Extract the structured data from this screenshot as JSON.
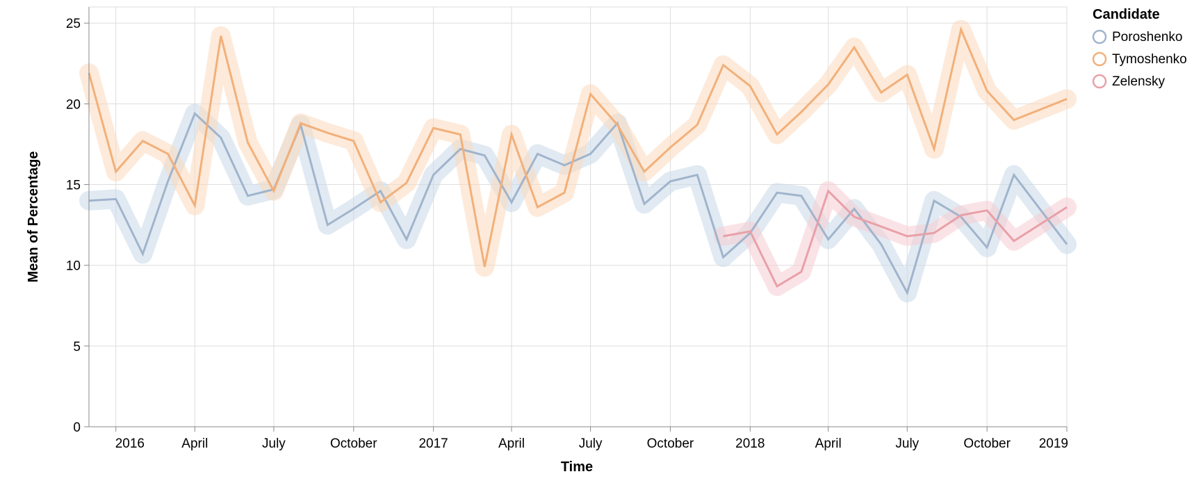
{
  "chart_data": {
    "type": "line",
    "xlabel": "Time",
    "ylabel": "Mean of Percentage",
    "ylim": [
      0,
      26
    ],
    "yticks": [
      0,
      5,
      10,
      15,
      20,
      25
    ],
    "xlim": [
      "2015-12-01",
      "2019-01-01"
    ],
    "xticks": [
      {
        "date": "2016-01-01",
        "label": "2016"
      },
      {
        "date": "2016-04-01",
        "label": "April"
      },
      {
        "date": "2016-07-01",
        "label": "July"
      },
      {
        "date": "2016-10-01",
        "label": "October"
      },
      {
        "date": "2017-01-01",
        "label": "2017"
      },
      {
        "date": "2017-04-01",
        "label": "April"
      },
      {
        "date": "2017-07-01",
        "label": "July"
      },
      {
        "date": "2017-10-01",
        "label": "October"
      },
      {
        "date": "2018-01-01",
        "label": "2018"
      },
      {
        "date": "2018-04-01",
        "label": "April"
      },
      {
        "date": "2018-07-01",
        "label": "July"
      },
      {
        "date": "2018-10-01",
        "label": "October"
      },
      {
        "date": "2019-01-01",
        "label": "2019"
      }
    ],
    "grid": true,
    "legend": {
      "title": "Candidate",
      "position": "top-right"
    },
    "series": [
      {
        "name": "Poroshenko",
        "color": "#a0b4cc",
        "halo": "#c9d8e8",
        "points": [
          [
            "2015-12-01",
            14.0
          ],
          [
            "2016-01-01",
            14.1
          ],
          [
            "2016-02-01",
            10.7
          ],
          [
            "2016-03-01",
            15.2
          ],
          [
            "2016-04-01",
            19.4
          ],
          [
            "2016-05-01",
            17.9
          ],
          [
            "2016-06-01",
            14.3
          ],
          [
            "2016-07-01",
            14.7
          ],
          [
            "2016-08-01",
            18.7
          ],
          [
            "2016-09-01",
            12.5
          ],
          [
            "2016-10-01",
            13.5
          ],
          [
            "2016-11-01",
            14.6
          ],
          [
            "2016-12-01",
            11.6
          ],
          [
            "2017-01-01",
            15.6
          ],
          [
            "2017-02-01",
            17.2
          ],
          [
            "2017-03-01",
            16.8
          ],
          [
            "2017-04-01",
            13.9
          ],
          [
            "2017-05-01",
            16.9
          ],
          [
            "2017-06-01",
            16.2
          ],
          [
            "2017-07-01",
            16.9
          ],
          [
            "2017-08-01",
            18.8
          ],
          [
            "2017-09-01",
            13.8
          ],
          [
            "2017-10-01",
            15.2
          ],
          [
            "2017-11-01",
            15.6
          ],
          [
            "2017-12-01",
            10.5
          ],
          [
            "2018-01-01",
            12.0
          ],
          [
            "2018-02-01",
            14.5
          ],
          [
            "2018-03-01",
            14.3
          ],
          [
            "2018-04-01",
            11.6
          ],
          [
            "2018-05-01",
            13.5
          ],
          [
            "2018-06-01",
            11.3
          ],
          [
            "2018-07-01",
            8.3
          ],
          [
            "2018-08-01",
            14.0
          ],
          [
            "2018-09-01",
            13.0
          ],
          [
            "2018-10-01",
            11.1
          ],
          [
            "2018-11-01",
            15.6
          ],
          [
            "2019-01-01",
            11.3
          ]
        ]
      },
      {
        "name": "Tymoshenko",
        "color": "#f2b07a",
        "halo": "#fcd9bc",
        "points": [
          [
            "2015-12-01",
            21.9
          ],
          [
            "2016-01-01",
            15.8
          ],
          [
            "2016-02-01",
            17.7
          ],
          [
            "2016-03-01",
            16.9
          ],
          [
            "2016-04-01",
            13.7
          ],
          [
            "2016-05-01",
            24.2
          ],
          [
            "2016-06-01",
            17.6
          ],
          [
            "2016-07-01",
            14.6
          ],
          [
            "2016-08-01",
            18.8
          ],
          [
            "2016-09-01",
            18.2
          ],
          [
            "2016-10-01",
            17.7
          ],
          [
            "2016-11-01",
            13.9
          ],
          [
            "2016-12-01",
            15.1
          ],
          [
            "2017-01-01",
            18.5
          ],
          [
            "2017-02-01",
            18.1
          ],
          [
            "2017-03-01",
            9.9
          ],
          [
            "2017-04-01",
            18.1
          ],
          [
            "2017-05-01",
            13.6
          ],
          [
            "2017-06-01",
            14.5
          ],
          [
            "2017-07-01",
            20.6
          ],
          [
            "2017-08-01",
            18.7
          ],
          [
            "2017-09-01",
            15.8
          ],
          [
            "2017-10-01",
            17.3
          ],
          [
            "2017-11-01",
            18.7
          ],
          [
            "2017-12-01",
            22.4
          ],
          [
            "2018-01-01",
            21.1
          ],
          [
            "2018-02-01",
            18.1
          ],
          [
            "2018-03-01",
            19.5
          ],
          [
            "2018-04-01",
            21.2
          ],
          [
            "2018-05-01",
            23.5
          ],
          [
            "2018-06-01",
            20.7
          ],
          [
            "2018-07-01",
            21.8
          ],
          [
            "2018-08-01",
            17.2
          ],
          [
            "2018-09-01",
            24.6
          ],
          [
            "2018-10-01",
            20.8
          ],
          [
            "2018-11-01",
            19.0
          ],
          [
            "2019-01-01",
            20.3
          ]
        ]
      },
      {
        "name": "Zelensky",
        "color": "#e8a0a8",
        "halo": "#f5ccd2",
        "points": [
          [
            "2017-12-01",
            11.8
          ],
          [
            "2018-01-01",
            12.1
          ],
          [
            "2018-02-01",
            8.7
          ],
          [
            "2018-03-01",
            9.6
          ],
          [
            "2018-04-01",
            14.6
          ],
          [
            "2018-05-01",
            13.0
          ],
          [
            "2018-06-01",
            12.4
          ],
          [
            "2018-07-01",
            11.8
          ],
          [
            "2018-08-01",
            12.0
          ],
          [
            "2018-09-01",
            13.1
          ],
          [
            "2018-10-01",
            13.4
          ],
          [
            "2018-11-01",
            11.5
          ],
          [
            "2019-01-01",
            13.6
          ]
        ]
      }
    ]
  }
}
